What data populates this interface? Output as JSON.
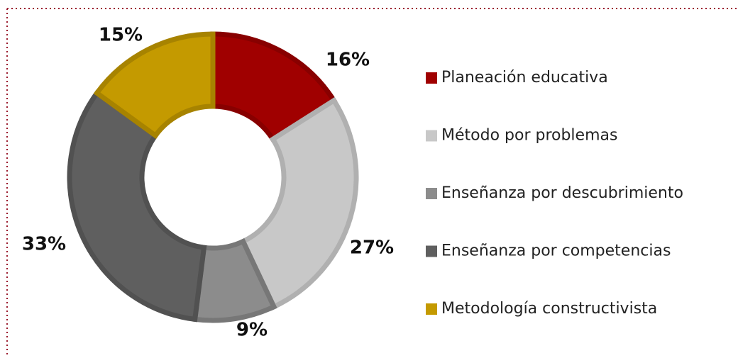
{
  "chart_data": {
    "type": "donut",
    "categories": [
      "Planeación educativa",
      "Método por problemas",
      "Enseñanza por descubrimiento",
      "Enseñanza por competencias",
      "Metodología constructivista"
    ],
    "values": [
      16,
      27,
      9,
      33,
      15
    ],
    "value_labels": [
      "16%",
      "27%",
      "9%",
      "33%",
      "15%"
    ],
    "colors": [
      "#a00000",
      "#c8c8c8",
      "#8c8c8c",
      "#5f5f5f",
      "#c49a00"
    ],
    "legend": "right"
  }
}
